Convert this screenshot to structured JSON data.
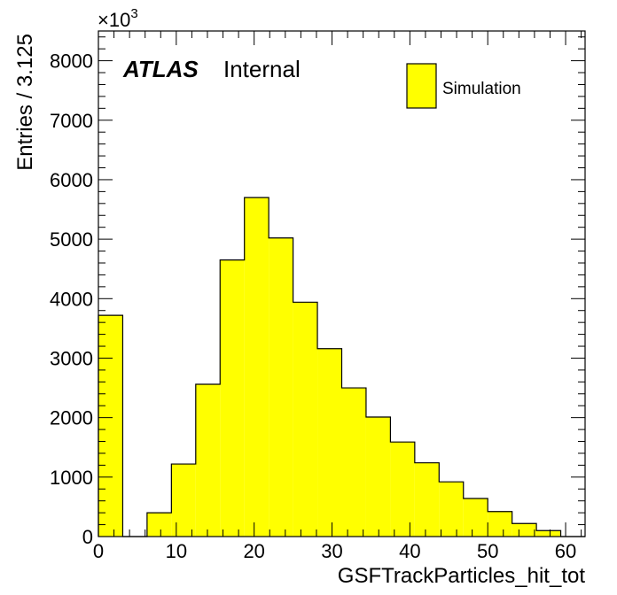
{
  "chart_data": {
    "type": "bar",
    "style": "histogram",
    "xlabel": "GSFTrackParticles_hit_tot",
    "ylabel": "Entries / 3.125",
    "y_multiplier": {
      "base": "×10",
      "exp": "3"
    },
    "xlim": [
      0,
      62.5
    ],
    "ylim": [
      0,
      8500
    ],
    "x_ticks": [
      0,
      10,
      20,
      30,
      40,
      50,
      60
    ],
    "y_ticks": [
      0,
      1000,
      2000,
      3000,
      4000,
      5000,
      6000,
      7000,
      8000
    ],
    "bin_width": 3.125,
    "bin_edges": [
      0,
      3.125,
      6.25,
      9.375,
      12.5,
      15.625,
      18.75,
      21.875,
      25,
      28.125,
      31.25,
      34.375,
      37.5,
      40.625,
      43.75,
      46.875,
      50,
      53.125,
      56.25,
      59.375,
      62.5
    ],
    "values": [
      3720,
      0,
      400,
      1220,
      2560,
      4650,
      5700,
      5020,
      3940,
      3160,
      2500,
      2010,
      1590,
      1240,
      920,
      640,
      420,
      220,
      100,
      0
    ],
    "series": [
      {
        "name": "Simulation",
        "color": "#ffff00"
      }
    ],
    "legend_position": "top-right",
    "grid": false
  },
  "labels": {
    "atlas": "ATLAS",
    "internal": "Internal"
  },
  "colors": {
    "fill": "#ffff00",
    "line": "#000000"
  }
}
